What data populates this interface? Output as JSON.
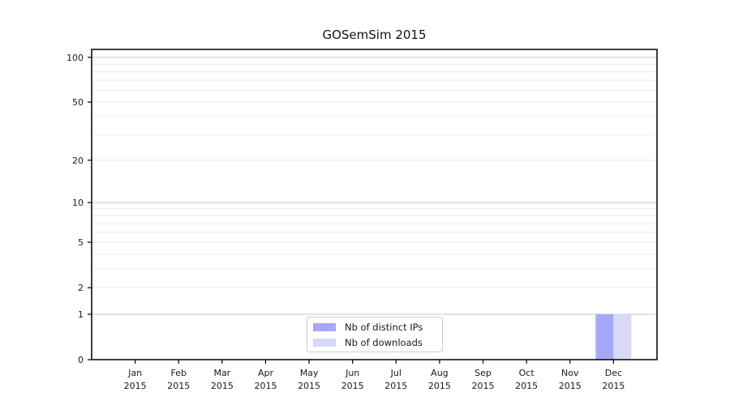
{
  "page": {
    "background": "#ffffff"
  },
  "chart_data": {
    "type": "bar",
    "title": "GOSemSim 2015",
    "categories": [
      "Jan 2015",
      "Feb 2015",
      "Mar 2015",
      "Apr 2015",
      "May 2015",
      "Jun 2015",
      "Jul 2015",
      "Aug 2015",
      "Sep 2015",
      "Oct 2015",
      "Nov 2015",
      "Dec 2015"
    ],
    "series": [
      {
        "name": "Nb of distinct IPs",
        "color": "#a7a7f7",
        "values": [
          0,
          0,
          0,
          0,
          0,
          0,
          0,
          0,
          0,
          0,
          0,
          1
        ]
      },
      {
        "name": "Nb of downloads",
        "color": "#d8d8f8",
        "values": [
          0,
          0,
          0,
          0,
          0,
          0,
          0,
          0,
          0,
          0,
          0,
          1
        ]
      }
    ],
    "yscale": "log1p",
    "yticks": [
      0,
      1,
      2,
      5,
      10,
      20,
      50,
      100
    ],
    "minor_grid_values": [
      2,
      3,
      4,
      5,
      6,
      7,
      8,
      9,
      20,
      30,
      40,
      50,
      60,
      70,
      80,
      90
    ],
    "major_grid_values": [
      1,
      10,
      100
    ],
    "ylim": [
      0,
      113
    ],
    "grid": "horizontal",
    "legend_position": "lower center",
    "colors": {
      "grid_major": "#c8c8c8",
      "grid_minor": "#ececec",
      "spine": "#000000",
      "text": "#1a1a1a",
      "legend_border": "#cccccc"
    }
  }
}
